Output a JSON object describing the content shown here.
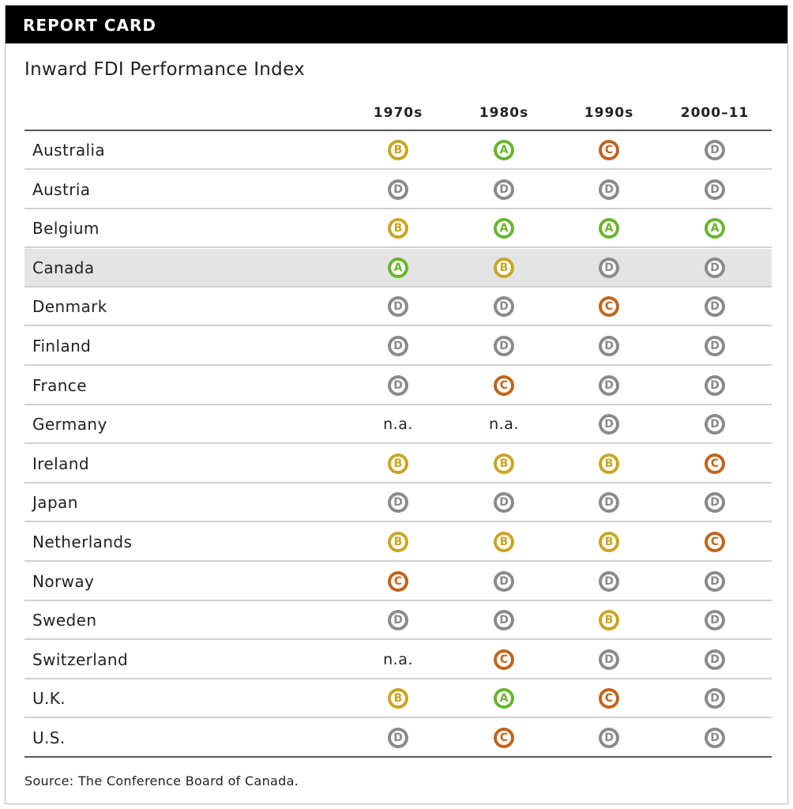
{
  "header": {
    "title": "REPORT CARD"
  },
  "chart_data": {
    "type": "table",
    "title": "Inward FDI Performance Index",
    "columns": [
      "1970s",
      "1980s",
      "1990s",
      "2000–11"
    ],
    "rows": [
      {
        "country": "Australia",
        "grades": [
          "B",
          "A",
          "C",
          "D"
        ]
      },
      {
        "country": "Austria",
        "grades": [
          "D",
          "D",
          "D",
          "D"
        ]
      },
      {
        "country": "Belgium",
        "grades": [
          "B",
          "A",
          "A",
          "A"
        ]
      },
      {
        "country": "Canada",
        "grades": [
          "A",
          "B",
          "D",
          "D"
        ],
        "highlight": true
      },
      {
        "country": "Denmark",
        "grades": [
          "D",
          "D",
          "C",
          "D"
        ]
      },
      {
        "country": "Finland",
        "grades": [
          "D",
          "D",
          "D",
          "D"
        ]
      },
      {
        "country": "France",
        "grades": [
          "D",
          "C",
          "D",
          "D"
        ]
      },
      {
        "country": "Germany",
        "grades": [
          "n.a.",
          "n.a.",
          "D",
          "D"
        ]
      },
      {
        "country": "Ireland",
        "grades": [
          "B",
          "B",
          "B",
          "C"
        ]
      },
      {
        "country": "Japan",
        "grades": [
          "D",
          "D",
          "D",
          "D"
        ]
      },
      {
        "country": "Netherlands",
        "grades": [
          "B",
          "B",
          "B",
          "C"
        ]
      },
      {
        "country": "Norway",
        "grades": [
          "C",
          "D",
          "D",
          "D"
        ]
      },
      {
        "country": "Sweden",
        "grades": [
          "D",
          "D",
          "B",
          "D"
        ]
      },
      {
        "country": "Switzerland",
        "grades": [
          "n.a.",
          "C",
          "D",
          "D"
        ]
      },
      {
        "country": "U.K.",
        "grades": [
          "B",
          "A",
          "C",
          "D"
        ]
      },
      {
        "country": "U.S.",
        "grades": [
          "D",
          "C",
          "D",
          "D"
        ]
      }
    ],
    "grade_colors": {
      "A": "#6ab42d",
      "B": "#c9a623",
      "C": "#c0641d",
      "D": "#8a8a8a"
    }
  },
  "footer": {
    "source": "Source: The Conference Board of Canada."
  }
}
